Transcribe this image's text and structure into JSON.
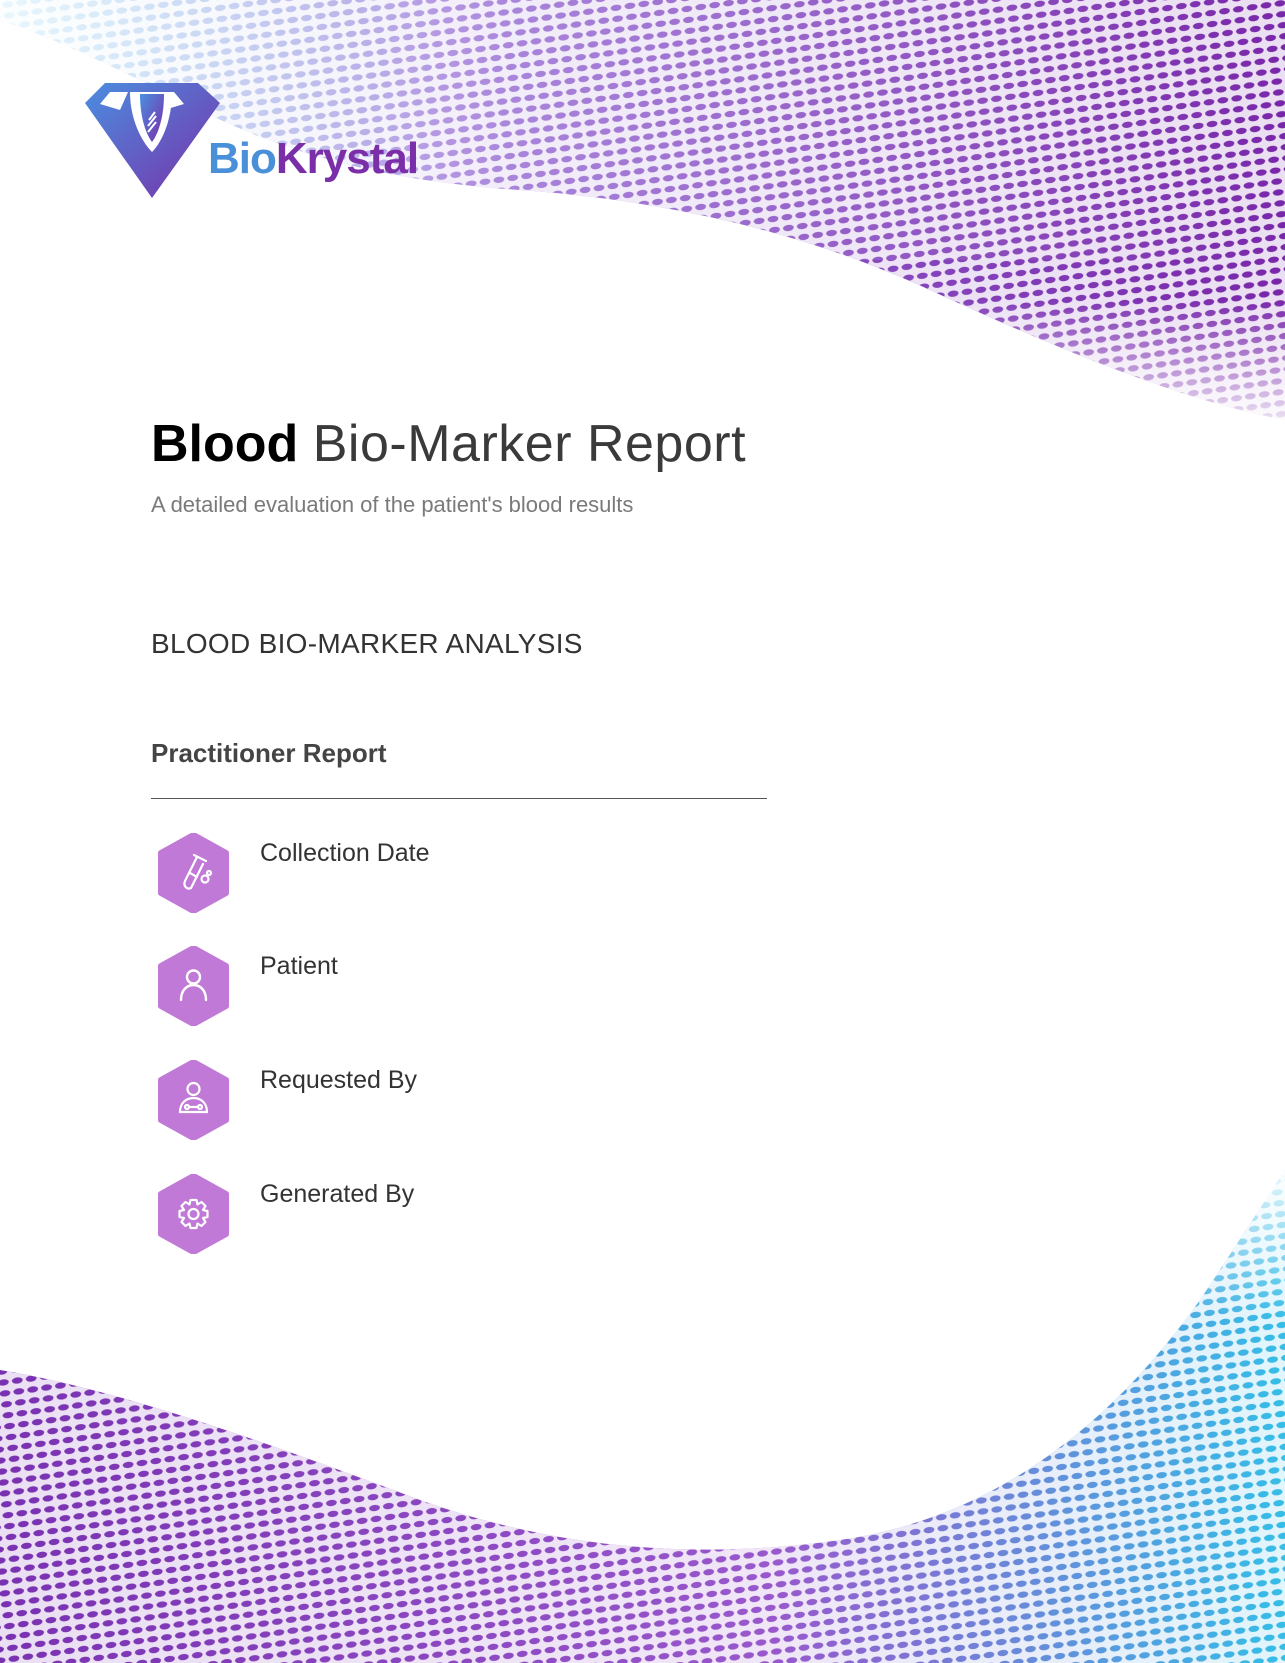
{
  "brand": {
    "name_part1": "Bio",
    "name_part2": "Krystal",
    "color_blue": "#4a90d9",
    "color_purple": "#7a2fa8"
  },
  "header": {
    "title_bold": "Blood",
    "title_light": "Bio-Marker Report",
    "subtitle": "A detailed evaluation of the patient's blood results"
  },
  "section": {
    "heading": "BLOOD BIO-MARKER ANALYSIS",
    "subheading": "Practitioner Report"
  },
  "fields": [
    {
      "label": "Collection Date",
      "icon": "test-tube-icon"
    },
    {
      "label": "Patient",
      "icon": "person-icon"
    },
    {
      "label": "Requested By",
      "icon": "doctor-icon"
    },
    {
      "label": "Generated By",
      "icon": "gear-icon"
    }
  ],
  "colors": {
    "icon_background": "#c079d6",
    "accent_purple": "#7a1fa6",
    "accent_cyan": "#2bb5e0"
  }
}
